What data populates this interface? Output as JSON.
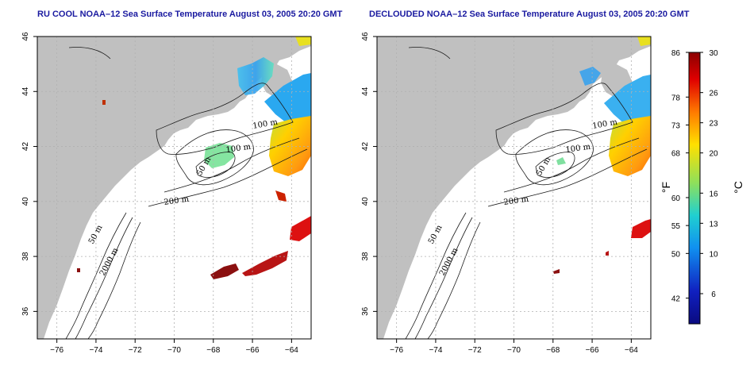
{
  "panels": [
    {
      "title": "RU COOL NOAA–12 Sea Surface Temperature August 03, 2005 20:20 GMT",
      "contour_labels": [
        "100 m",
        "100 m",
        "50 m",
        "200 m",
        "50 m",
        "2000 m"
      ]
    },
    {
      "title": "DECLOUDED NOAA–12 Sea Surface Temperature August 03, 2005 20:20 GMT",
      "contour_labels": [
        "100 m",
        "100 m",
        "50 m",
        "200 m",
        "50 m",
        "2000 m"
      ]
    }
  ],
  "axes": {
    "x_ticks": [
      "−76",
      "−74",
      "−72",
      "−70",
      "−68",
      "−66",
      "−64"
    ],
    "x_values": [
      -76,
      -74,
      -72,
      -70,
      -68,
      -66,
      -64
    ],
    "y_ticks": [
      "36",
      "38",
      "40",
      "42",
      "44",
      "46"
    ],
    "y_values": [
      36,
      38,
      40,
      42,
      44,
      46
    ],
    "xlim": [
      -77,
      -63
    ],
    "ylim": [
      35,
      46
    ],
    "grid": true
  },
  "colorbar": {
    "fahrenheit_unit": "°F",
    "celsius_unit": "°C",
    "fahrenheit_ticks": [
      "86",
      "78",
      "73",
      "68",
      "60",
      "55",
      "50",
      "42"
    ],
    "fahrenheit_values": [
      86,
      78,
      73,
      68,
      60,
      55,
      50,
      42
    ],
    "celsius_ticks": [
      "30",
      "26",
      "23",
      "20",
      "16",
      "13",
      "10",
      "6"
    ],
    "celsius_values": [
      30,
      26,
      23,
      20,
      16,
      13,
      10,
      6
    ],
    "range_c": [
      3,
      30
    ],
    "colors": [
      "#8b0000",
      "#e00000",
      "#ff7a00",
      "#ffe000",
      "#8fe05a",
      "#20d0d0",
      "#1090f0",
      "#1020c0",
      "#0a0a80"
    ]
  },
  "colors": {
    "land": "#c0c0c0",
    "title": "#1a1aa0"
  }
}
